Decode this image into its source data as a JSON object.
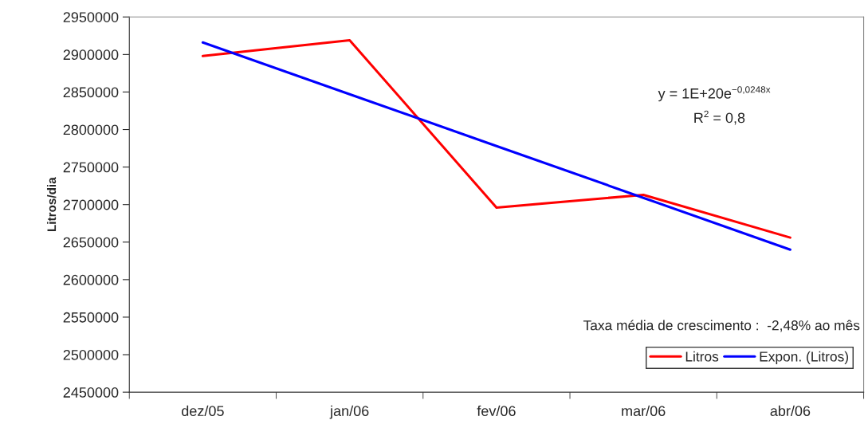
{
  "chart_data": {
    "type": "line",
    "ylabel": "Litros/dia",
    "categories": [
      "dez/05",
      "jan/06",
      "fev/06",
      "mar/06",
      "abr/06"
    ],
    "series": [
      {
        "name": "Litros",
        "color": "#ff0000",
        "values": [
          2898000,
          2919000,
          2696000,
          2713000,
          2656000
        ]
      },
      {
        "name": "Expon. (Litros)",
        "color": "#0000ff",
        "values": [
          2916000,
          2847000,
          2778000,
          2709000,
          2640000
        ]
      }
    ],
    "ylim": [
      2450000,
      2950000
    ],
    "yticks": [
      2450000,
      2500000,
      2550000,
      2600000,
      2650000,
      2700000,
      2750000,
      2800000,
      2850000,
      2900000,
      2950000
    ],
    "annotations": [
      "y = 1E+20e$^{−0,0248x}$",
      "R$^{2}$ = 0,8",
      "Taxa média de crescimento :  -2,48% ao mês"
    ],
    "grid": false,
    "legend": "bottom right",
    "marker": "none",
    "line_style": "solid"
  }
}
